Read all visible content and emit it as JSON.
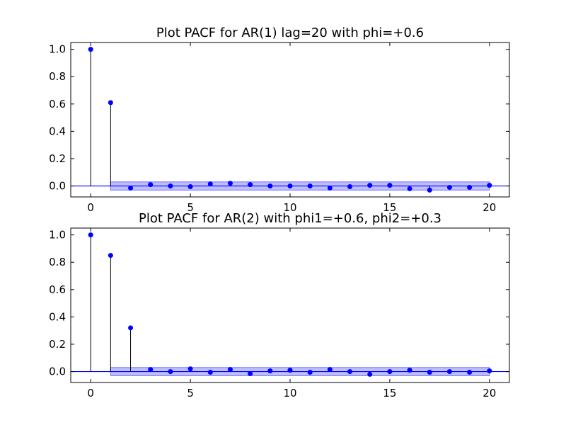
{
  "chart_data": [
    {
      "type": "stem",
      "title": "Plot PACF for AR(1) lag=20 with phi=+0.6",
      "xlabel": "",
      "ylabel": "",
      "xlim": [
        -1,
        21
      ],
      "ylim": [
        -0.08,
        1.05
      ],
      "xticks": [
        0,
        5,
        10,
        15,
        20
      ],
      "xtick_labels": [
        "0",
        "5",
        "10",
        "15",
        "20"
      ],
      "yticks": [
        0.0,
        0.2,
        0.4,
        0.6,
        0.8,
        1.0
      ],
      "ytick_labels": [
        "0.0",
        "0.2",
        "0.4",
        "0.6",
        "0.8",
        "1.0"
      ],
      "x": [
        0,
        1,
        2,
        3,
        4,
        5,
        6,
        7,
        8,
        9,
        10,
        11,
        12,
        13,
        14,
        15,
        16,
        17,
        18,
        19,
        20
      ],
      "values": [
        1.0,
        0.61,
        -0.015,
        0.01,
        0.0,
        -0.005,
        0.015,
        0.02,
        0.01,
        0.0,
        0.0,
        0.0,
        -0.015,
        -0.005,
        0.005,
        0.005,
        -0.02,
        -0.03,
        -0.01,
        -0.01,
        0.005
      ],
      "confidence_band": {
        "x": [
          1,
          20
        ],
        "lower": -0.03,
        "upper": 0.03
      },
      "colors": {
        "marker": "#0000ff",
        "stem": "#000000",
        "baseline": "#0000ff",
        "band": "#0000ff"
      },
      "grid": false
    },
    {
      "type": "stem",
      "title": "Plot PACF for AR(2) with phi1=+0.6, phi2=+0.3",
      "xlabel": "",
      "ylabel": "",
      "xlim": [
        -1,
        21
      ],
      "ylim": [
        -0.08,
        1.05
      ],
      "xticks": [
        0,
        5,
        10,
        15,
        20
      ],
      "xtick_labels": [
        "0",
        "5",
        "10",
        "15",
        "20"
      ],
      "yticks": [
        0.0,
        0.2,
        0.4,
        0.6,
        0.8,
        1.0
      ],
      "ytick_labels": [
        "0.0",
        "0.2",
        "0.4",
        "0.6",
        "0.8",
        "1.0"
      ],
      "x": [
        0,
        1,
        2,
        3,
        4,
        5,
        6,
        7,
        8,
        9,
        10,
        11,
        12,
        13,
        14,
        15,
        16,
        17,
        18,
        19,
        20
      ],
      "values": [
        1.0,
        0.85,
        0.32,
        0.015,
        0.0,
        0.02,
        -0.005,
        0.015,
        -0.015,
        0.005,
        0.01,
        -0.005,
        0.015,
        0.0,
        -0.02,
        0.0,
        0.01,
        -0.005,
        0.0,
        -0.005,
        0.005
      ],
      "confidence_band": {
        "x": [
          1,
          20
        ],
        "lower": -0.03,
        "upper": 0.03
      },
      "colors": {
        "marker": "#0000ff",
        "stem": "#000000",
        "baseline": "#0000ff",
        "band": "#0000ff"
      },
      "grid": false
    }
  ]
}
